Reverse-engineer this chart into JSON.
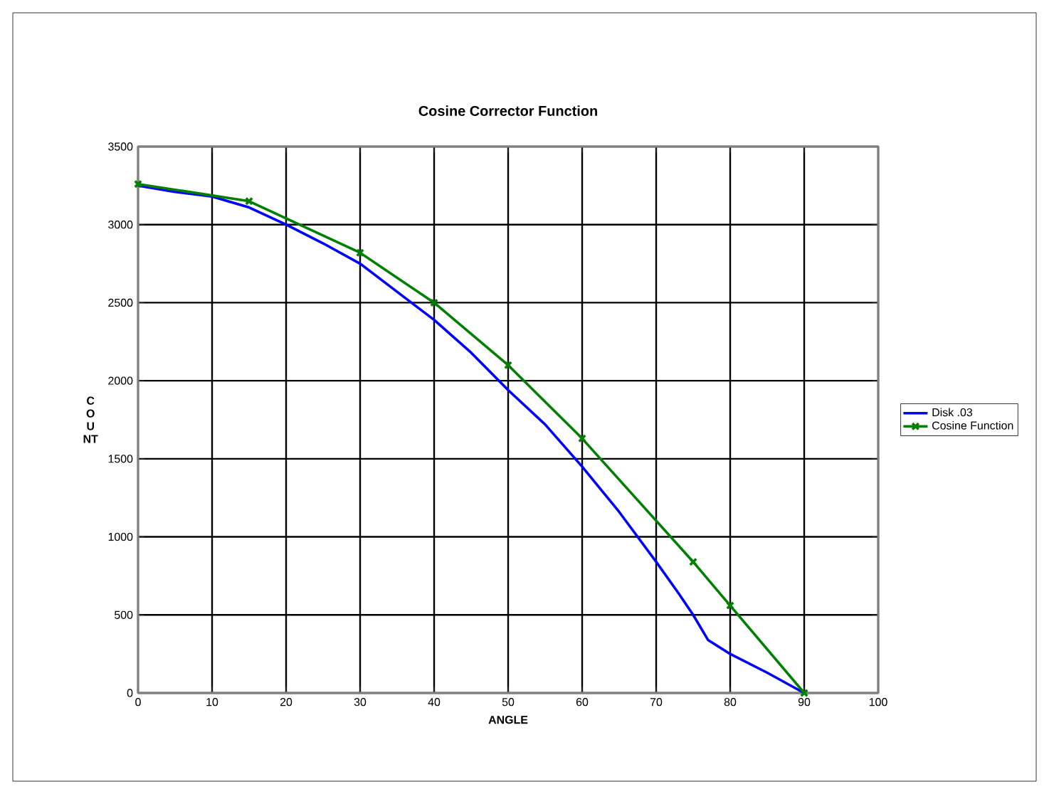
{
  "chart_data": {
    "type": "line",
    "title": "Cosine Corrector Function",
    "xlabel": "ANGLE",
    "ylabel": "C\nO\nU\nNT",
    "xlim": [
      0,
      100
    ],
    "xticks": [
      0,
      10,
      20,
      30,
      40,
      50,
      60,
      70,
      80,
      90,
      100
    ],
    "ylim": [
      0,
      3500
    ],
    "yticks": [
      0,
      500,
      1000,
      1500,
      2000,
      2500,
      3000,
      3500
    ],
    "grid": true,
    "legend": "right",
    "series": [
      {
        "name": "Disk .03",
        "color": "#0000ff",
        "marker": "none",
        "x": [
          0,
          5,
          10,
          15,
          20,
          25,
          30,
          35,
          40,
          45,
          50,
          55,
          60,
          65,
          70,
          73,
          75,
          77,
          80,
          85,
          90
        ],
        "values": [
          3250,
          3210,
          3180,
          3110,
          3000,
          2880,
          2750,
          2570,
          2390,
          2180,
          1940,
          1720,
          1450,
          1160,
          840,
          640,
          500,
          340,
          250,
          130,
          0
        ]
      },
      {
        "name": "Cosine Function",
        "color": "#008000",
        "marker": "cross",
        "x": [
          0,
          15,
          30,
          40,
          50,
          60,
          75,
          80,
          90
        ],
        "values": [
          3260,
          3150,
          2820,
          2500,
          2100,
          1630,
          840,
          560,
          0
        ]
      }
    ]
  }
}
